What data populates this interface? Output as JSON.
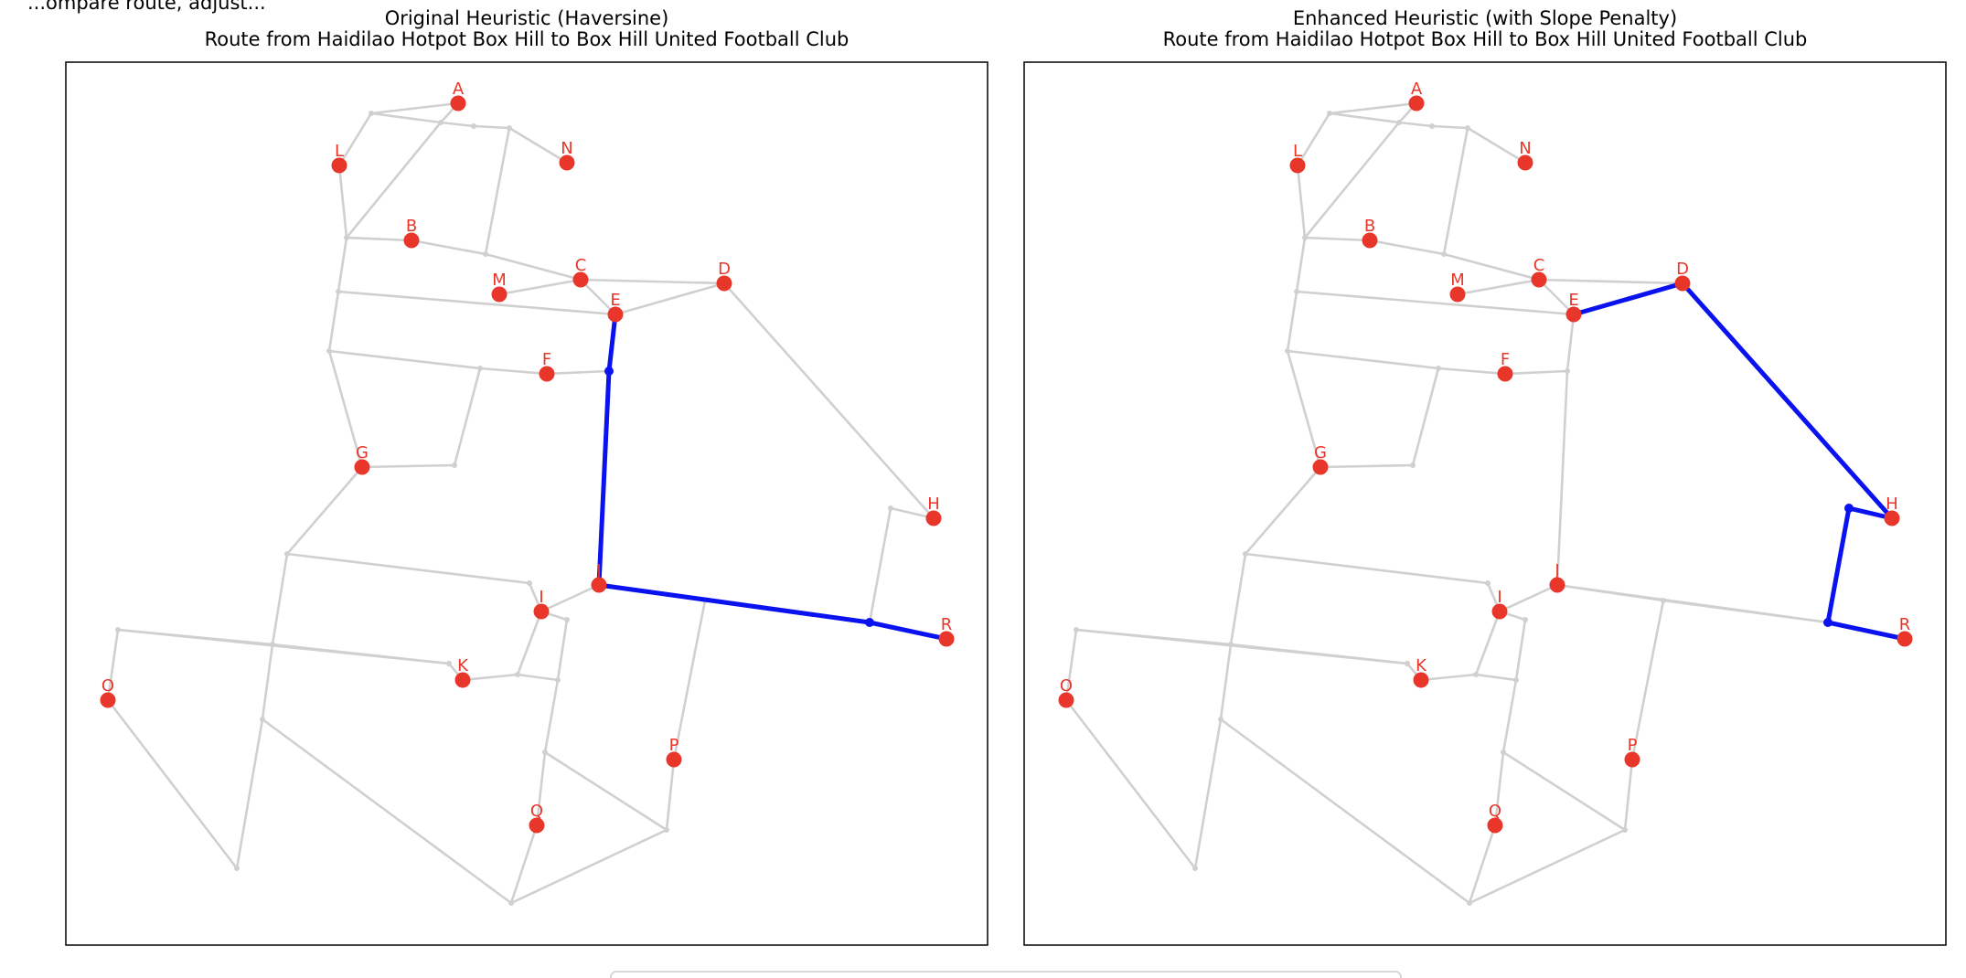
{
  "figure": {
    "suptitle": "...ompare route, adjust..."
  },
  "colors": {
    "edge": "#d0d0d0",
    "route": "#0a12f0",
    "node": "#e8362a",
    "label": "#e8362a",
    "frame": "#000000"
  },
  "graph": {
    "nodes": [
      {
        "id": "A",
        "labeled": true
      },
      {
        "id": "L",
        "labeled": true
      },
      {
        "id": "N",
        "labeled": true
      },
      {
        "id": "B",
        "labeled": true
      },
      {
        "id": "M",
        "labeled": true
      },
      {
        "id": "C",
        "labeled": true
      },
      {
        "id": "D",
        "labeled": true
      },
      {
        "id": "E",
        "labeled": true
      },
      {
        "id": "F",
        "labeled": true
      },
      {
        "id": "G",
        "labeled": true
      },
      {
        "id": "H",
        "labeled": true
      },
      {
        "id": "I",
        "labeled": true
      },
      {
        "id": "J",
        "labeled": true
      },
      {
        "id": "K",
        "labeled": true
      },
      {
        "id": "O",
        "labeled": true
      },
      {
        "id": "P",
        "labeled": true
      },
      {
        "id": "Q",
        "labeled": true
      },
      {
        "id": "R",
        "labeled": true
      },
      {
        "id": "n1"
      },
      {
        "id": "n2"
      },
      {
        "id": "n3"
      },
      {
        "id": "n4"
      },
      {
        "id": "n5"
      },
      {
        "id": "n6"
      },
      {
        "id": "n7"
      },
      {
        "id": "n8"
      },
      {
        "id": "n9"
      },
      {
        "id": "n10"
      },
      {
        "id": "n11"
      },
      {
        "id": "n12"
      },
      {
        "id": "n13"
      },
      {
        "id": "n14"
      },
      {
        "id": "n15"
      },
      {
        "id": "n16"
      },
      {
        "id": "n17"
      },
      {
        "id": "n18"
      },
      {
        "id": "n19"
      },
      {
        "id": "n20"
      },
      {
        "id": "n21"
      },
      {
        "id": "n22"
      },
      {
        "id": "n23"
      },
      {
        "id": "n24"
      },
      {
        "id": "n25"
      },
      {
        "id": "n26"
      },
      {
        "id": "n27"
      },
      {
        "id": "n28"
      },
      {
        "id": "n29"
      },
      {
        "id": "n30"
      },
      {
        "id": "n31"
      },
      {
        "id": "n32"
      }
    ],
    "edges": [
      [
        "n1",
        "A"
      ],
      [
        "A",
        "n2"
      ],
      [
        "n1",
        "L"
      ],
      [
        "n1",
        "n2"
      ],
      [
        "n2",
        "n5"
      ],
      [
        "n2",
        "n3"
      ],
      [
        "n3",
        "n4"
      ],
      [
        "n4",
        "N"
      ],
      [
        "n4",
        "n6"
      ],
      [
        "L",
        "n5"
      ],
      [
        "n5",
        "B"
      ],
      [
        "B",
        "n6"
      ],
      [
        "n6",
        "C"
      ],
      [
        "n5",
        "n7"
      ],
      [
        "n7",
        "E"
      ],
      [
        "M",
        "C"
      ],
      [
        "C",
        "D"
      ],
      [
        "C",
        "E"
      ],
      [
        "E",
        "D"
      ],
      [
        "D",
        "H"
      ],
      [
        "n7",
        "n8"
      ],
      [
        "n8",
        "n9"
      ],
      [
        "n9",
        "F"
      ],
      [
        "F",
        "n10"
      ],
      [
        "n10",
        "E"
      ],
      [
        "n8",
        "G"
      ],
      [
        "G",
        "n11"
      ],
      [
        "n11",
        "n9"
      ],
      [
        "n10",
        "J"
      ],
      [
        "G",
        "n12"
      ],
      [
        "n12",
        "n13"
      ],
      [
        "n13",
        "I"
      ],
      [
        "I",
        "J"
      ],
      [
        "n12",
        "n14"
      ],
      [
        "n14",
        "n23"
      ],
      [
        "n15",
        "n14"
      ],
      [
        "n15",
        "O"
      ],
      [
        "n14",
        "n16"
      ],
      [
        "n16",
        "K"
      ],
      [
        "n16",
        "n20"
      ],
      [
        "K",
        "n17"
      ],
      [
        "n17",
        "I"
      ],
      [
        "n17",
        "n18"
      ],
      [
        "I",
        "n19"
      ],
      [
        "n19",
        "n18"
      ],
      [
        "n18",
        "n21"
      ],
      [
        "n21",
        "Q"
      ],
      [
        "Q",
        "n24"
      ],
      [
        "n24",
        "n22"
      ],
      [
        "n23",
        "n24"
      ],
      [
        "n23",
        "n30"
      ],
      [
        "n30",
        "O"
      ],
      [
        "n21",
        "n22"
      ],
      [
        "n22",
        "P"
      ],
      [
        "P",
        "n25"
      ],
      [
        "n25",
        "J"
      ],
      [
        "J",
        "n27"
      ],
      [
        "n27",
        "R"
      ],
      [
        "n27",
        "n28"
      ],
      [
        "n28",
        "H"
      ],
      [
        "n25",
        "n27"
      ],
      [
        "n20",
        "n26"
      ],
      [
        "n15",
        "n20"
      ]
    ],
    "comment_edges_note": ""
  },
  "panels": [
    {
      "id": "original",
      "title_line1": "Original Heuristic (Haversine)",
      "title_line2": "Route from Haidilao Hotpot Box Hill to Box Hill United Football Club",
      "route": [
        "E",
        "n10",
        "J",
        "n27",
        "R"
      ],
      "route_inner": [
        "n10",
        "n27"
      ]
    },
    {
      "id": "enhanced",
      "title_line1": "Enhanced Heuristic (with Slope Penalty)",
      "title_line2": "Route from Haidilao Hotpot Box Hill to Box Hill United Football Club",
      "route": [
        "E",
        "D",
        "H",
        "n28",
        "n27",
        "R"
      ],
      "route_inner": [
        "n28",
        "n27"
      ]
    }
  ]
}
